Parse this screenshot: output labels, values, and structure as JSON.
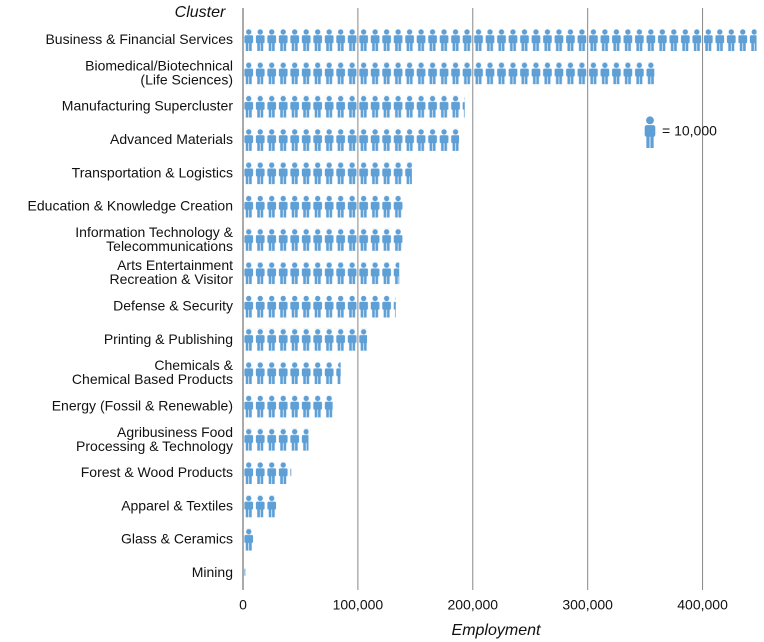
{
  "chart_data": {
    "type": "pictograph",
    "y_axis_label": "Cluster",
    "x_axis_label": "Employment",
    "categories": [
      "Business & Financial Services",
      "Biomedical/Biotechnical\n(Life Sciences)",
      "Manufacturing Supercluster",
      "Advanced Materials",
      "Transportation & Logistics",
      "Education & Knowledge Creation",
      "Information Technology &\nTelecommunications",
      "Arts Entertainment\nRecreation & Visitor",
      "Defense & Security",
      "Printing & Publishing",
      "Chemicals &\nChemical Based Products",
      "Energy (Fossil & Renewable)",
      "Agribusiness Food\nProcessing & Technology",
      "Forest & Wood Products",
      "Apparel & Textiles",
      "Glass & Ceramics",
      "Mining"
    ],
    "values": [
      447000,
      358000,
      193000,
      188000,
      147000,
      141000,
      139000,
      136000,
      133000,
      108000,
      85000,
      78000,
      57000,
      42000,
      29000,
      9000,
      2000
    ],
    "color": "#5e9fd6",
    "icon_value": 10000,
    "legend_label": "= 10,000",
    "xlim": [
      0,
      450000
    ],
    "xticks": [
      0,
      {
        "value": 100000,
        "label": "100,000"
      },
      {
        "value": 200000,
        "label": "200,000"
      },
      {
        "value": 300000,
        "label": "300,000"
      },
      {
        "value": 400000,
        "label": "400,000"
      }
    ],
    "grid": true
  }
}
